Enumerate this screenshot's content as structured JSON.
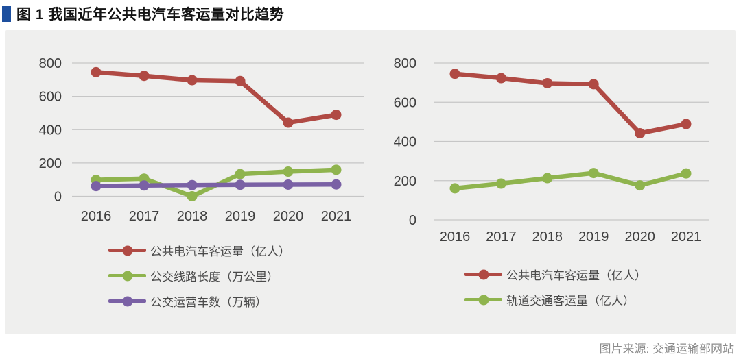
{
  "title": {
    "text": "图 1 我国近年公共电汽车客运量对比趋势",
    "marker_color": "#1d4f9e"
  },
  "source": "图片来源: 交通运输部网站",
  "colors": {
    "panel_bg": "#efefee",
    "grid": "#c6c6c6",
    "axis_text": "#3f3f3f",
    "red": "#b04a44",
    "green": "#8fb44e",
    "purple": "#7a61a5"
  },
  "chart_data": [
    {
      "type": "line",
      "title": "",
      "categories": [
        "2016",
        "2017",
        "2018",
        "2019",
        "2020",
        "2021"
      ],
      "series": [
        {
          "name": "公共电汽车客运量（亿人）",
          "color": "#b04a44",
          "values": [
            745,
            723,
            697,
            692,
            442,
            489
          ]
        },
        {
          "name": "公交线路长度（万公里）",
          "color": "#8fb44e",
          "values": [
            98,
            106,
            0,
            133,
            148,
            159
          ]
        },
        {
          "name": "公交运营车数（万辆）",
          "color": "#7a61a5",
          "values": [
            61,
            65,
            67,
            69,
            70,
            71
          ]
        }
      ],
      "xlabel": "",
      "ylabel": "",
      "ylim": [
        0,
        800
      ],
      "yticks": [
        0,
        200,
        400,
        600,
        800
      ],
      "grid": true,
      "legend_position": "bottom"
    },
    {
      "type": "line",
      "title": "",
      "categories": [
        "2016",
        "2017",
        "2018",
        "2019",
        "2020",
        "2021"
      ],
      "series": [
        {
          "name": "公共电汽车客运量（亿人）",
          "color": "#b04a44",
          "values": [
            745,
            723,
            697,
            692,
            442,
            489
          ]
        },
        {
          "name": "轨道交通客运量（亿人）",
          "color": "#8fb44e",
          "values": [
            161,
            185,
            213,
            239,
            176,
            237
          ]
        }
      ],
      "xlabel": "",
      "ylabel": "",
      "ylim": [
        0,
        800
      ],
      "yticks": [
        0,
        200,
        400,
        600,
        800
      ],
      "grid": true,
      "legend_position": "bottom"
    }
  ]
}
